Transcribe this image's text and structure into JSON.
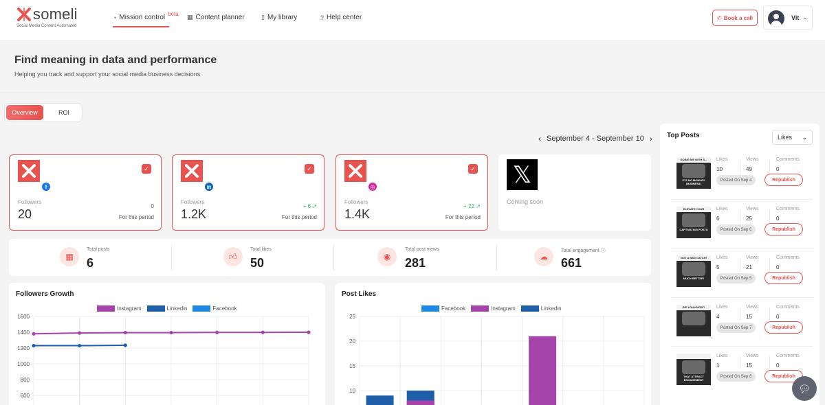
{
  "nav": {
    "logo_text": "someli",
    "logo_tagline": "Social Media Content Automated",
    "items": [
      {
        "label": "Mission control",
        "icon": "gauge-icon",
        "badge": "beta"
      },
      {
        "label": "Content planner",
        "icon": "calendar-icon"
      },
      {
        "label": "My library",
        "icon": "library-icon"
      },
      {
        "label": "Help center",
        "icon": "help-icon"
      }
    ],
    "book_call": "Book a call",
    "user_name": "Vit"
  },
  "header": {
    "title": "Find meaning in data and performance",
    "subtitle": "Helping you track and support your social media business decisions"
  },
  "tabs": {
    "overview": "Overview",
    "roi": "ROI"
  },
  "period": {
    "label": "September 4 - September 10"
  },
  "accounts": [
    {
      "network": "facebook",
      "badge": "f",
      "color": "#1877f2",
      "followers_label": "Followers",
      "followers": "20",
      "delta": "0",
      "period": "For this period"
    },
    {
      "network": "linkedin",
      "badge": "in",
      "color": "#0a66c2",
      "followers_label": "Followers",
      "followers": "1.2K",
      "delta": "+ 6",
      "period": "For this period"
    },
    {
      "network": "instagram",
      "badge": "◎",
      "color": "#d6249f",
      "followers_label": "Followers",
      "followers": "1.4K",
      "delta": "+ 22",
      "period": "For this period"
    }
  ],
  "x_account": {
    "status": "Coming soon"
  },
  "stats": [
    {
      "label": "Total posts",
      "value": "6",
      "icon": "calendar-icon"
    },
    {
      "label": "Total likes",
      "value": "50",
      "icon": "thumbs-up-icon"
    },
    {
      "label": "Total post views",
      "value": "281",
      "icon": "eye-icon"
    },
    {
      "label": "Total engagement",
      "value": "661",
      "icon": "chat-icon"
    }
  ],
  "followers_chart": {
    "title": "Followers Growth",
    "legend": [
      {
        "name": "Instagram",
        "color": "#a544aa"
      },
      {
        "name": "Linkedin",
        "color": "#1f5ea8"
      },
      {
        "name": "Facebook",
        "color": "#1e88e5"
      }
    ]
  },
  "likes_chart": {
    "title": "Post Likes",
    "legend": [
      {
        "name": "Facebook",
        "color": "#1e88e5"
      },
      {
        "name": "Instagram",
        "color": "#a544aa"
      },
      {
        "name": "Linkedin",
        "color": "#1f5ea8"
      }
    ]
  },
  "chart_data": [
    {
      "type": "line",
      "title": "Followers Growth",
      "ylim": [
        600,
        1600
      ],
      "yticks": [
        1600,
        1400,
        1200,
        1000,
        800,
        600
      ],
      "x_count": 7,
      "series": [
        {
          "name": "Instagram",
          "color": "#a544aa",
          "values": [
            1380,
            1390,
            1395,
            1395,
            1398,
            1398,
            1400
          ]
        },
        {
          "name": "Linkedin",
          "color": "#1f5ea8",
          "values": [
            1230,
            1230,
            1235
          ]
        }
      ]
    },
    {
      "type": "bar",
      "title": "Post Likes",
      "ylim": [
        0,
        25
      ],
      "yticks": [
        25,
        20,
        15,
        10
      ],
      "categories": 7,
      "series": [
        {
          "name": "Linkedin",
          "color": "#1f5ea8",
          "values": [
            9,
            10,
            0,
            0,
            0,
            0,
            0
          ]
        },
        {
          "name": "Instagram",
          "color": "#a544aa",
          "values": [
            0,
            8,
            0,
            0,
            21,
            0,
            0
          ]
        }
      ]
    }
  ],
  "top_posts": {
    "title": "Top Posts",
    "sort": "Likes",
    "labels": {
      "likes": "Likes",
      "views": "Views",
      "comments": "Comments",
      "republish": "Republish"
    },
    "items": [
      {
        "likes": "10",
        "views": "49",
        "comments": "0",
        "posted": "Posted On Sep 4",
        "band": "GOING ME WITH S...",
        "cap": "IT'S NO MONKEY BUSINESS!"
      },
      {
        "likes": "6",
        "views": "25",
        "comments": "0",
        "posted": "Posted On Sep 6",
        "band": "ELEVATE YOUR",
        "cap": "CAPTIVATING POSTS"
      },
      {
        "likes": "5",
        "views": "21",
        "comments": "0",
        "posted": "Posted On Sep 5",
        "band": "NOT A BAD CATCH!",
        "cap": "MUCH BETTER!"
      },
      {
        "likes": "4",
        "views": "15",
        "comments": "0",
        "posted": "Posted On Sep 7",
        "band": "DID YOU KNOW?",
        "cap": ""
      },
      {
        "likes": "1",
        "views": "15",
        "comments": "0",
        "posted": "Posted On Sep 8",
        "band": "",
        "cap": "THAT ATTRACT ENGAGEMENT"
      }
    ]
  }
}
